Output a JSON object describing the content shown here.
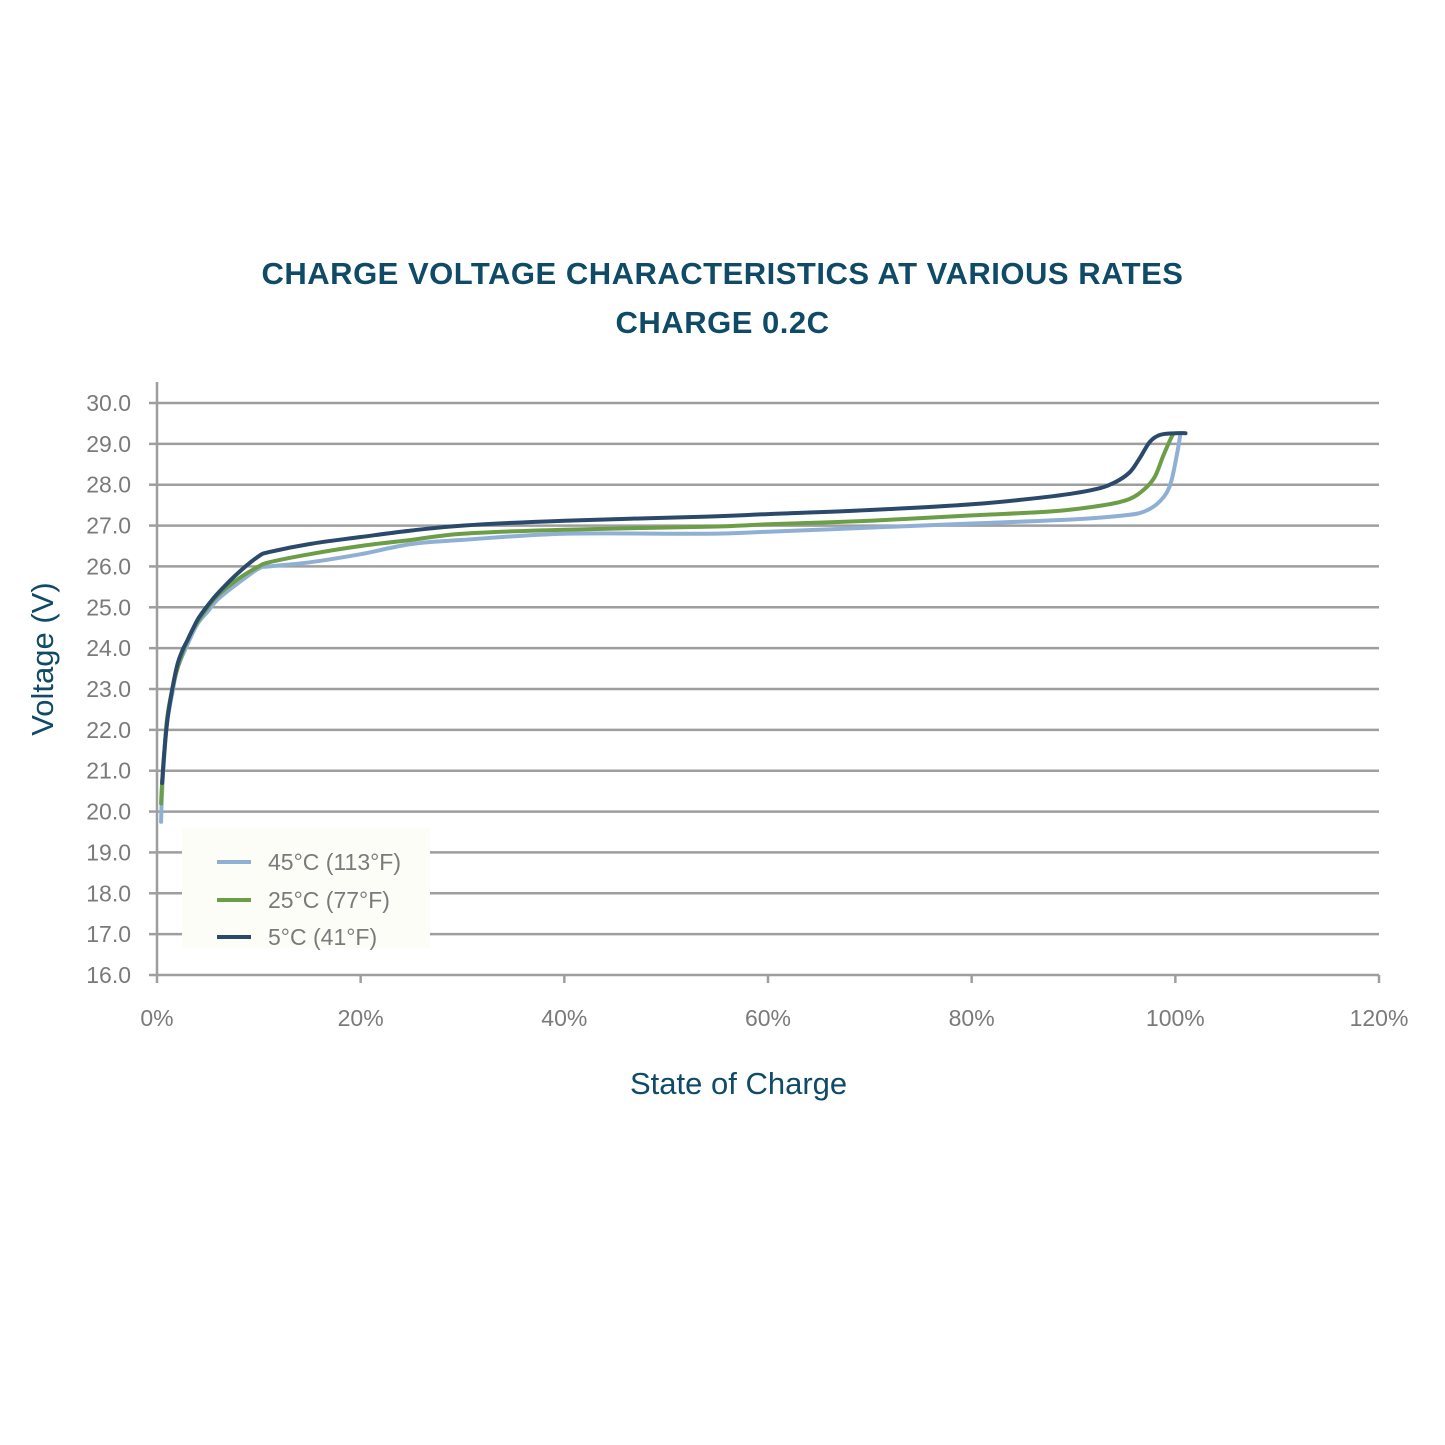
{
  "title_line1": "CHARGE VOLTAGE CHARACTERISTICS AT VARIOUS RATES",
  "title_line2": "CHARGE 0.2C",
  "colors": {
    "title": "#0f4a66",
    "grid": "#9e9e9e",
    "tick_text": "#7a7a7a",
    "series_45": "#8fb0d4",
    "series_25": "#6b9e47",
    "series_5": "#2b4a6b"
  },
  "chart_data": {
    "type": "line",
    "xlabel": "State of Charge",
    "ylabel": "Voltage (V)",
    "xlim": [
      0,
      120
    ],
    "ylim": [
      16,
      30
    ],
    "x_ticks": [
      "0%",
      "20%",
      "40%",
      "60%",
      "80%",
      "100%",
      "120%"
    ],
    "y_ticks": [
      "16.0",
      "17.0",
      "18.0",
      "19.0",
      "20.0",
      "21.0",
      "22.0",
      "23.0",
      "24.0",
      "25.0",
      "26.0",
      "27.0",
      "28.0",
      "29.0",
      "30.0"
    ],
    "grid": "horizontal",
    "legend_position": "bottom-left",
    "series": [
      {
        "name": "45°C (113°F)",
        "color": "#8fb0d4",
        "x": [
          0.4,
          0.5,
          0.7,
          1.0,
          1.5,
          2.0,
          3.0,
          4.0,
          5.0,
          6.0,
          8.0,
          10.0,
          11.0,
          15.0,
          20.0,
          25.0,
          30.0,
          40.0,
          54.0,
          60.0,
          70.0,
          80.0,
          90.0,
          95.0,
          97.0,
          98.5,
          99.5,
          100.2,
          100.5
        ],
        "y": [
          19.75,
          20.5,
          21.3,
          22.2,
          22.9,
          23.5,
          24.1,
          24.6,
          24.9,
          25.2,
          25.6,
          25.95,
          26.0,
          26.1,
          26.3,
          26.55,
          26.65,
          26.8,
          26.8,
          26.85,
          26.95,
          27.05,
          27.15,
          27.25,
          27.35,
          27.6,
          28.0,
          28.8,
          29.25
        ]
      },
      {
        "name": "25°C (77°F)",
        "color": "#6b9e47",
        "x": [
          0.4,
          0.5,
          0.7,
          1.0,
          1.5,
          2.0,
          3.0,
          4.0,
          5.0,
          6.0,
          8.0,
          10.0,
          11.0,
          15.0,
          20.0,
          25.0,
          30.0,
          40.0,
          54.0,
          60.0,
          70.0,
          80.0,
          88.0,
          93.0,
          95.5,
          97.0,
          98.0,
          98.8,
          99.5,
          99.8
        ],
        "y": [
          20.2,
          20.7,
          21.4,
          22.3,
          23.0,
          23.5,
          24.2,
          24.65,
          25.0,
          25.3,
          25.7,
          26.0,
          26.1,
          26.3,
          26.5,
          26.65,
          26.8,
          26.9,
          26.97,
          27.03,
          27.12,
          27.25,
          27.35,
          27.5,
          27.65,
          27.9,
          28.2,
          28.7,
          29.1,
          29.25
        ]
      },
      {
        "name": "5°C (41°F)",
        "color": "#2b4a6b",
        "x": [
          0.5,
          0.7,
          1.0,
          1.5,
          2.0,
          2.5,
          3.0,
          4.0,
          5.0,
          6.0,
          8.0,
          10.0,
          11.0,
          15.0,
          20.0,
          25.0,
          30.0,
          40.0,
          54.0,
          60.0,
          70.0,
          80.0,
          88.0,
          92.0,
          94.0,
          95.5,
          96.5,
          97.5,
          98.5,
          100.0,
          101.0
        ],
        "y": [
          20.7,
          21.4,
          22.2,
          23.0,
          23.6,
          23.95,
          24.2,
          24.7,
          25.05,
          25.35,
          25.85,
          26.25,
          26.35,
          26.55,
          26.72,
          26.88,
          27.0,
          27.12,
          27.22,
          27.28,
          27.38,
          27.52,
          27.72,
          27.88,
          28.05,
          28.3,
          28.65,
          29.05,
          29.22,
          29.26,
          29.26
        ]
      }
    ]
  }
}
